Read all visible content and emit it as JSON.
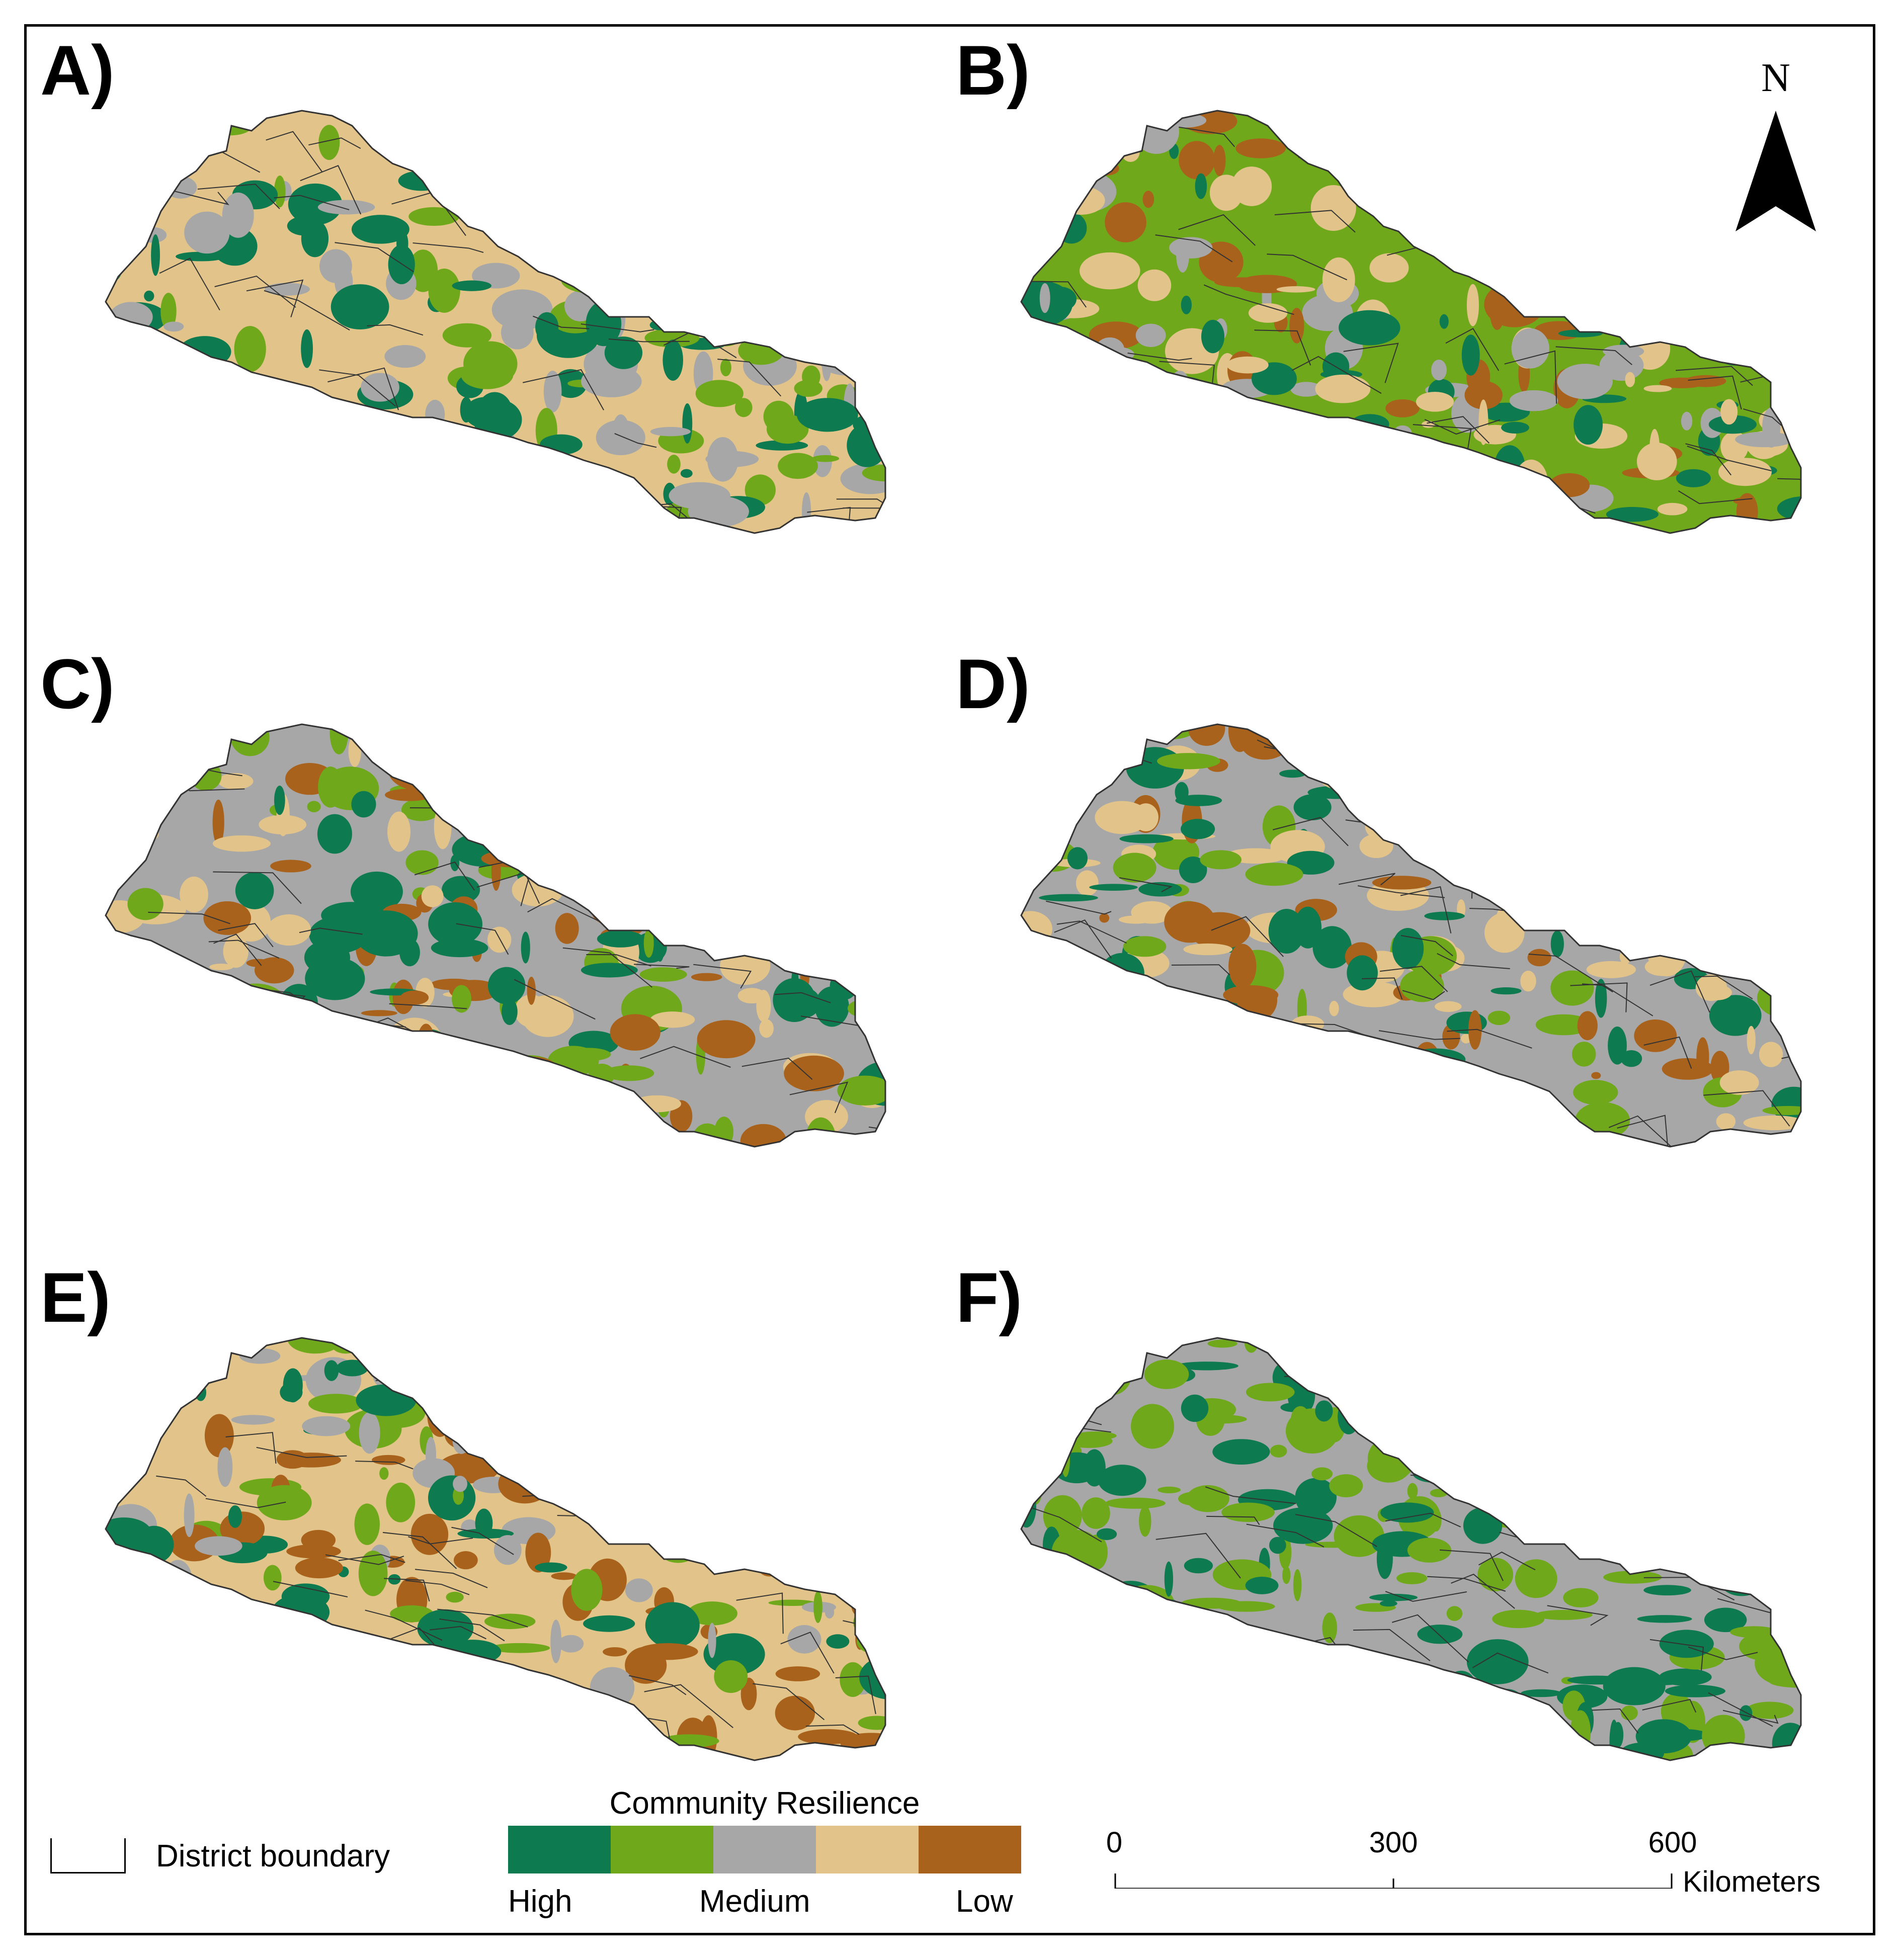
{
  "panels": [
    {
      "label": "A)",
      "dominant": "#e2c48a",
      "accents": [
        "#a7a7a7",
        "#6fa81a",
        "#0e7a4f"
      ]
    },
    {
      "label": "B)",
      "dominant": "#6fa81a",
      "accents": [
        "#a7a7a7",
        "#0e7a4f",
        "#e2c48a",
        "#a9621b"
      ]
    },
    {
      "label": "C)",
      "dominant": "#a7a7a7",
      "accents": [
        "#a9621b",
        "#e2c48a",
        "#0e7a4f",
        "#6fa81a"
      ]
    },
    {
      "label": "D)",
      "dominant": "#a7a7a7",
      "accents": [
        "#0e7a4f",
        "#6fa81a",
        "#e2c48a",
        "#a9621b"
      ]
    },
    {
      "label": "E)",
      "dominant": "#e2c48a",
      "accents": [
        "#0e7a4f",
        "#6fa81a",
        "#a9621b",
        "#a7a7a7"
      ]
    },
    {
      "label": "F)",
      "dominant": "#a7a7a7",
      "accents": [
        "#6fa81a",
        "#0e7a4f"
      ]
    }
  ],
  "north_arrow": {
    "letter": "N"
  },
  "legend": {
    "district_label": "District boundary",
    "title": "Community Resilience",
    "classes": [
      {
        "name": "High",
        "color": "#0e7a4f"
      },
      {
        "name": "",
        "color": "#6fa81a"
      },
      {
        "name": "Medium",
        "color": "#a7a7a7"
      },
      {
        "name": "",
        "color": "#e2c48a"
      },
      {
        "name": "Low",
        "color": "#a9621b"
      }
    ],
    "low_label": "High",
    "mid_label": "Medium",
    "high_label": "Low"
  },
  "scale_bar": {
    "ticks": [
      "0",
      "300",
      "600"
    ],
    "unit": "Kilometers"
  }
}
